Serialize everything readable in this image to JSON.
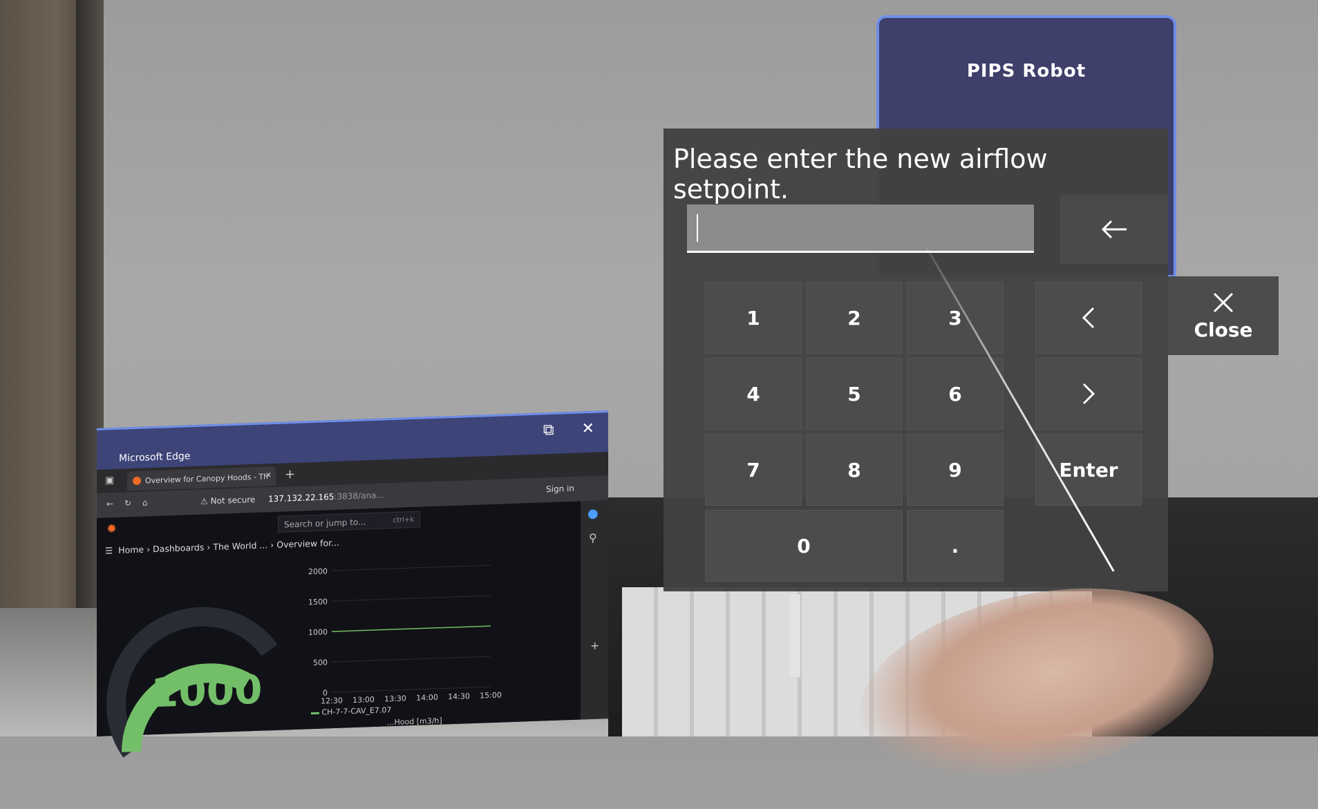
{
  "pips": {
    "title": "PIPS Robot"
  },
  "keypad": {
    "prompt": "Please enter the new airflow setpoint.",
    "input_value": "",
    "keys": {
      "k1": "1",
      "k2": "2",
      "k3": "3",
      "k4": "4",
      "k5": "5",
      "k6": "6",
      "k7": "7",
      "k8": "8",
      "k9": "9",
      "k0": "0",
      "dot": ".",
      "enter": "Enter"
    },
    "close_label": "Close"
  },
  "edge": {
    "window_title": "Microsoft Edge",
    "tab_title": "Overview for Canopy Hoods - Th",
    "not_secure": "Not secure",
    "url": "137.132.22.165",
    "url_rest": ":3838/ana...",
    "sign_in": "Sign in",
    "search_placeholder": "Search or jump to...",
    "search_shortcut": "ctrl+k",
    "breadcrumbs": [
      "Home",
      "Dashboards",
      "The World ...",
      "Overview for..."
    ],
    "gauge_value": "1000",
    "gauge_fraction": 0.5,
    "chart": {
      "y_ticks": [
        "2000",
        "1500",
        "1000",
        "500",
        "0"
      ],
      "x_ticks": [
        "12:30",
        "13:00",
        "13:30",
        "14:00",
        "14:30",
        "15:00"
      ],
      "legend": "CH-7-7-CAV_E7.07",
      "footer": "...Hood [m3/h]"
    }
  },
  "chart_data": {
    "type": "line",
    "x": [
      "12:30",
      "13:00",
      "13:30",
      "14:00",
      "14:30",
      "15:00"
    ],
    "series": [
      {
        "name": "CH-7-7-CAV_E7.07",
        "values": [
          1000,
          1000,
          1000,
          1000,
          1000,
          1000
        ]
      }
    ],
    "ylim": [
      0,
      2000
    ],
    "grid": true,
    "colors": {
      "series": "#73bf69"
    }
  },
  "colors": {
    "pips_bg": "#3f3f6b",
    "pips_border": "#6f8ee8",
    "keypad_bg": "#424242",
    "gauge_green": "#73bf69"
  }
}
